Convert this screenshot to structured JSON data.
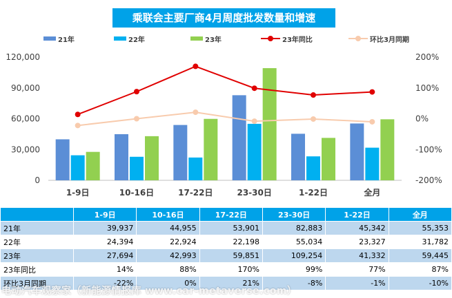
{
  "chart_data": {
    "type": "bar",
    "title": "乘联会主要厂商4月周度批发数量和增速",
    "categories": [
      "1-9日",
      "10-16日",
      "17-22日",
      "23-30日",
      "1-22日",
      "全月"
    ],
    "series": [
      {
        "name": "21年",
        "type": "bar",
        "axis": "left",
        "color": "#5b8ed6",
        "values": [
          39937,
          44955,
          53901,
          82883,
          45342,
          55353
        ]
      },
      {
        "name": "22年",
        "type": "bar",
        "axis": "left",
        "color": "#00b0f0",
        "values": [
          24394,
          22924,
          22198,
          55034,
          23327,
          31782
        ]
      },
      {
        "name": "23年",
        "type": "bar",
        "axis": "left",
        "color": "#92d050",
        "values": [
          27694,
          42993,
          59851,
          109254,
          41332,
          59445
        ]
      },
      {
        "name": "23年同比",
        "type": "line",
        "axis": "right",
        "color": "#e00000",
        "values": [
          14,
          88,
          170,
          99,
          77,
          87
        ]
      },
      {
        "name": "环比3月同期",
        "type": "line",
        "axis": "right",
        "color": "#f8cbad",
        "values": [
          -22,
          0,
          21,
          -8,
          -1,
          -10
        ]
      }
    ],
    "y_left": {
      "min": 0,
      "max": 120000,
      "ticks": [
        "0",
        "30,000",
        "60,000",
        "90,000",
        "120,000"
      ]
    },
    "y_right": {
      "min": -200,
      "max": 200,
      "ticks": [
        "-200%",
        "-100%",
        "0%",
        "100%",
        "200%"
      ]
    },
    "grid": false,
    "legend": "top"
  },
  "table": {
    "headers": [
      "",
      "1-9日",
      "10-16日",
      "17-22日",
      "23-30日",
      "1-22日",
      "全月"
    ],
    "rows": [
      {
        "label": "21年",
        "cells": [
          "39,937",
          "44,955",
          "53,901",
          "82,883",
          "45,342",
          "55,353"
        ]
      },
      {
        "label": "22年",
        "cells": [
          "24,394",
          "22,924",
          "22,198",
          "55,034",
          "23,327",
          "31,782"
        ]
      },
      {
        "label": "23年",
        "cells": [
          "27,694",
          "42,993",
          "59,851",
          "109,254",
          "41,332",
          "59,445"
        ]
      },
      {
        "label": "23年同比",
        "cells": [
          "14%",
          "88%",
          "170%",
          "99%",
          "77%",
          "87%"
        ]
      },
      {
        "label": "环比3月同期",
        "cells": [
          "-22%",
          "0%",
          "21%",
          "-8%",
          "-1%",
          "-10%"
        ]
      }
    ]
  },
  "watermark": "电动汽车观察家（新能源情报库 www.car-metaverse.com）"
}
